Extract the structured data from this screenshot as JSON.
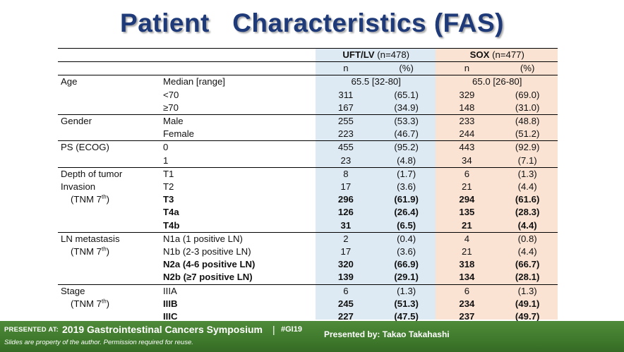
{
  "title": "Patient   Characteristics (FAS)",
  "header": {
    "uft_name": "UFT/LV",
    "uft_n": " (n=478)",
    "sox_name": "SOX",
    "sox_n": " (n=477)",
    "n_label": "n",
    "pct_label": "(%)"
  },
  "rows": [
    {
      "c1": "Age",
      "c2": "Median  [range]",
      "uft_span": "65.5 [32-80]",
      "sox_span": "65.0 [26-80]"
    },
    {
      "c2": "<70",
      "un": "311",
      "up": "(65.1)",
      "sn": "329",
      "sp": "(69.0)"
    },
    {
      "c2": "≥70",
      "un": "167",
      "up": "(34.9)",
      "sn": "148",
      "sp": "(31.0)"
    },
    {
      "c1": "Gender",
      "c2": "Male",
      "un": "255",
      "up": "(53.3)",
      "sn": "233",
      "sp": "(48.8)"
    },
    {
      "c2": "Female",
      "un": "223",
      "up": "(46.7)",
      "sn": "244",
      "sp": "(51.2)"
    },
    {
      "c1": "PS (ECOG)",
      "c2": "0",
      "un": "455",
      "up": "(95.2)",
      "sn": "443",
      "sp": "(92.9)"
    },
    {
      "c2": "1",
      "un": "23",
      "up": "(4.8)",
      "sn": "34",
      "sp": "(7.1)"
    },
    {
      "c1": "Depth of tumor",
      "c2": "T1",
      "un": "8",
      "up": "(1.7)",
      "sn": "6",
      "sp": "(1.3)"
    },
    {
      "c1": "Invasion",
      "c2": "T2",
      "un": "17",
      "up": "(3.6)",
      "sn": "21",
      "sp": "(4.4)"
    },
    {
      "c1_a": "(TNM 7",
      "c1_sup": "th",
      "c1_b": ")",
      "c2": "T3",
      "un": "296",
      "up": "(61.9)",
      "sn": "294",
      "sp": "(61.6)"
    },
    {
      "c2": "T4a",
      "un": "126",
      "up": "(26.4)",
      "sn": "135",
      "sp": "(28.3)"
    },
    {
      "c2": "T4b",
      "un": "31",
      "up": "(6.5)",
      "sn": "21",
      "sp": "(4.4)"
    },
    {
      "c1": "LN metastasis",
      "c2": "N1a (1      positive LN)",
      "un": "2",
      "up": "(0.4)",
      "sn": "4",
      "sp": "(0.8)"
    },
    {
      "c1_a": "(TNM 7",
      "c1_sup": "th",
      "c1_b": ")",
      "c2": "N1b (2-3 positive  LN)",
      "un": "17",
      "up": "(3.6)",
      "sn": "21",
      "sp": "(4.4)"
    },
    {
      "c2": "N2a (4-6 positive LN)",
      "un": "320",
      "up": "(66.9)",
      "sn": "318",
      "sp": "(66.7)"
    },
    {
      "c2": "N2b (≥7  positive LN)",
      "un": "139",
      "up": "(29.1)",
      "sn": "134",
      "sp": "(28.1)"
    },
    {
      "c1": "Stage",
      "c2": "IIIA",
      "un": "6",
      "up": "(1.3)",
      "sn": "6",
      "sp": "(1.3)"
    },
    {
      "c1_a": "(TNM 7",
      "c1_sup": "th",
      "c1_b": ")",
      "c2": "IIIB",
      "un": "245",
      "up": "(51.3)",
      "sn": "234",
      "sp": "(49.1)"
    },
    {
      "c2": "IIIC",
      "un": "227",
      "up": "(47.5)",
      "sn": "237",
      "sp": "(49.7)"
    }
  ],
  "footer": {
    "presented_at": "PRESENTED AT:",
    "conference": "2019 Gastrointestinal Cancers Symposium",
    "divider": "|",
    "hashtag": "#GI19",
    "presenter": "Presented by: Takao Takahashi",
    "note": "Slides are property of the author. Permission required for reuse."
  },
  "colors": {
    "title": "#1f3a78",
    "uft_col": "#deeaf3",
    "sox_col": "#fbe3d3",
    "footer": "#3f7a2c"
  }
}
